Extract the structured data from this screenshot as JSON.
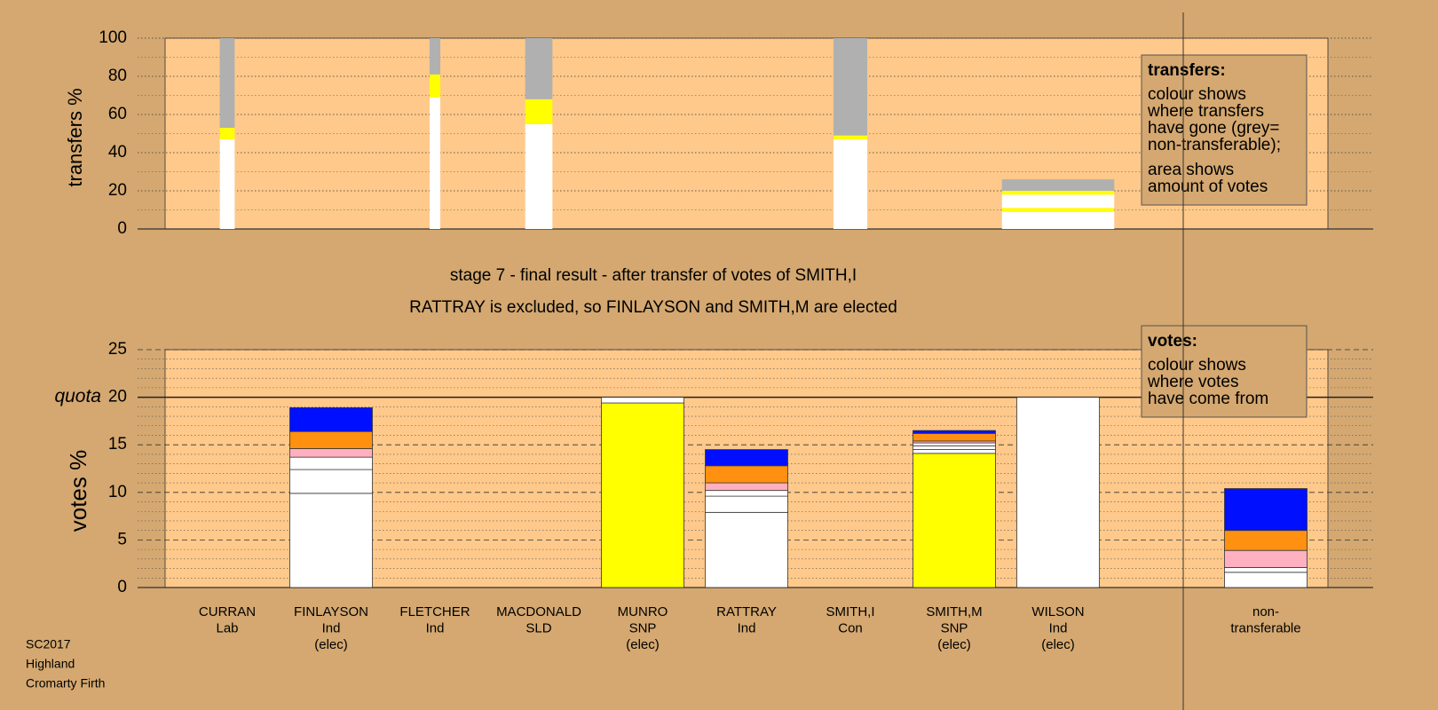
{
  "caption": [
    "stage 7 - final result - after transfer of votes of SMITH,I",
    "RATTRAY is excluded, so FINLAYSON and SMITH,M are elected"
  ],
  "footer": [
    "SC2017",
    "Highland",
    "Cromarty Firth"
  ],
  "chart_data": [
    {
      "type": "bar",
      "stacked": true,
      "y_label": "transfers %",
      "ylim": [
        0,
        100
      ],
      "yticks": [
        0,
        20,
        40,
        60,
        80,
        100
      ],
      "minor_grid": 10,
      "grid_style": "dotted",
      "widths": [
        0.18,
        0,
        0.13,
        0.33,
        0,
        0,
        0.41,
        0,
        1.36,
        0,
        0
      ],
      "series": [
        {
          "color": "#ffffff",
          "values": [
            47,
            0,
            69,
            55,
            0,
            0,
            47,
            0,
            9,
            0,
            0
          ]
        },
        {
          "color": "#ffff00",
          "values": [
            6,
            0,
            12,
            13,
            0,
            0,
            2,
            0,
            2,
            0,
            0
          ]
        },
        {
          "color": "#ffffff",
          "values": [
            0,
            0,
            0,
            0,
            0,
            0,
            0,
            0,
            7,
            0,
            0
          ]
        },
        {
          "color": "#ffff00",
          "values": [
            0,
            0,
            0,
            0,
            0,
            0,
            0,
            0,
            2,
            0,
            0
          ]
        },
        {
          "color": "#b0b0b0",
          "values": [
            47,
            0,
            19,
            32,
            0,
            0,
            51,
            0,
            6,
            0,
            0
          ]
        }
      ],
      "note": {
        "heading": "transfers:",
        "paragraphs": [
          [
            "colour shows",
            "where transfers",
            "have gone (grey=",
            "non-transferable);"
          ],
          [
            "area shows",
            "amount of votes"
          ]
        ]
      }
    },
    {
      "type": "bar",
      "stacked": true,
      "y_label": "votes %",
      "ylim": [
        0,
        25
      ],
      "yticks": [
        0,
        5,
        10,
        15,
        20,
        25
      ],
      "minor_grid": 1,
      "grid_style": "dashed",
      "quota": {
        "value": 20,
        "label": "quota"
      },
      "categories": [
        [
          "CURRAN",
          "Lab"
        ],
        [
          "FINLAYSON",
          "Ind",
          "(elec)"
        ],
        [
          "FLETCHER",
          "Ind"
        ],
        [
          "MACDONALD",
          "SLD"
        ],
        [
          "MUNRO",
          "SNP",
          "(elec)"
        ],
        [
          "RATTRAY",
          "Ind"
        ],
        [
          "SMITH,I",
          "Con"
        ],
        [
          "SMITH,M",
          "SNP",
          "(elec)"
        ],
        [
          "WILSON",
          "Ind",
          "(elec)"
        ],
        null,
        [
          "non-",
          "transferable"
        ]
      ],
      "series": [
        {
          "color": "#ffff00",
          "values": [
            0,
            0,
            0,
            0,
            19.4,
            0,
            0,
            14.1,
            0,
            0,
            0
          ]
        },
        {
          "color": "#ffffff",
          "values": [
            0,
            9.9,
            0,
            0,
            0.6,
            7.9,
            0,
            0.4,
            20,
            0,
            1.6
          ]
        },
        {
          "color": "#ffffff",
          "values": [
            0,
            2.5,
            0,
            0,
            0,
            1.7,
            0,
            0.4,
            0,
            0,
            0.5
          ]
        },
        {
          "color": "#ffffff",
          "values": [
            0,
            1.3,
            0,
            0,
            0,
            0.6,
            0,
            0.3,
            0,
            0,
            0
          ]
        },
        {
          "color": "#ffb0c0",
          "values": [
            0,
            0.9,
            0,
            0,
            0,
            0.8,
            0,
            0.2,
            0,
            0,
            1.8
          ]
        },
        {
          "color": "#ff9010",
          "values": [
            0,
            1.8,
            0,
            0,
            0,
            1.8,
            0,
            0.8,
            0,
            0,
            2.1
          ]
        },
        {
          "color": "#0010ff",
          "values": [
            0,
            2.5,
            0,
            0,
            0,
            1.7,
            0,
            0.3,
            0,
            0,
            4.4
          ]
        }
      ],
      "note": {
        "heading": "votes:",
        "paragraphs": [
          [
            "colour shows",
            "where votes",
            "have come from"
          ]
        ]
      }
    }
  ]
}
